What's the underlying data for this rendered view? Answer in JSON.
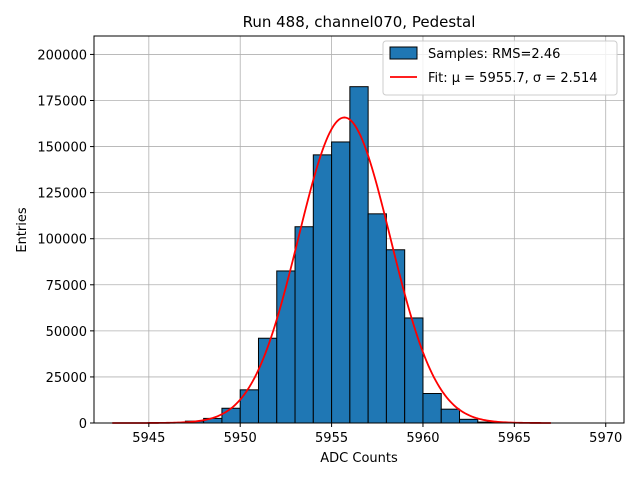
{
  "chart_data": {
    "type": "bar",
    "title": "Run 488, channel070, Pedestal",
    "xlabel": "ADC Counts",
    "ylabel": "Entries",
    "xlim": [
      5942,
      5971
    ],
    "ylim": [
      0,
      210000
    ],
    "xticks": [
      5945,
      5950,
      5955,
      5960,
      5965,
      5970
    ],
    "yticks": [
      0,
      25000,
      50000,
      75000,
      100000,
      125000,
      150000,
      175000,
      200000
    ],
    "grid": true,
    "legend_position": "top-right",
    "bar_color": "#1f77b4",
    "fit_color": "#ff0000",
    "bin_width": 1,
    "histogram": {
      "name": "Samples: RMS=2.46",
      "bin_left_edges": [
        5947,
        5948,
        5949,
        5950,
        5951,
        5952,
        5953,
        5954,
        5955,
        5956,
        5957,
        5958,
        5959,
        5960,
        5961,
        5962,
        5963
      ],
      "counts": [
        1000,
        2500,
        8000,
        18000,
        46000,
        82500,
        106500,
        145500,
        152500,
        182500,
        113500,
        94000,
        57000,
        16000,
        7500,
        2000,
        500
      ]
    },
    "fit": {
      "name": "Fit: μ = 5955.7, σ = 2.514",
      "mu": 5955.7,
      "sigma": 2.514,
      "amplitude": 165800,
      "x_range": [
        5943,
        5967
      ]
    }
  }
}
